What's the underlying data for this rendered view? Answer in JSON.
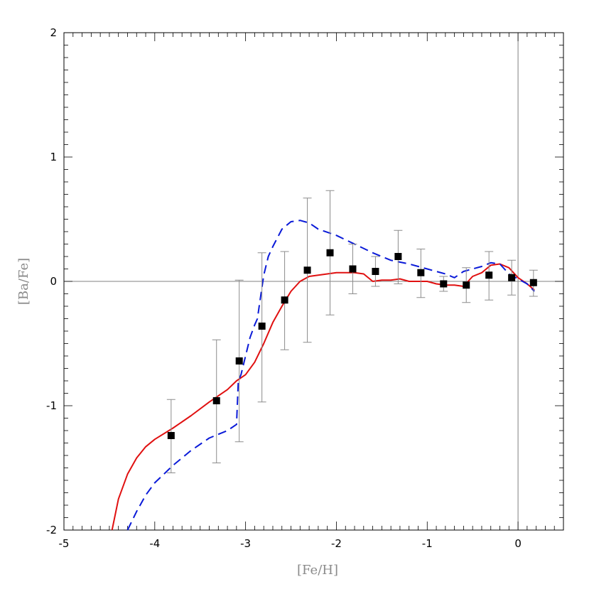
{
  "chart_data": {
    "type": "scatter",
    "xlabel": "[Fe/H]",
    "ylabel": "[Ba/Fe]",
    "xlim": [
      -5,
      0.5
    ],
    "ylim": [
      -2,
      2
    ],
    "x_ticks": [
      "-5",
      "-4",
      "-3",
      "-2",
      "-1",
      "0"
    ],
    "y_ticks": [
      "-2",
      "-1",
      "0",
      "1",
      "2"
    ],
    "reference_lines": {
      "x": 0,
      "y": 0
    },
    "colors": {
      "observations": "#000000",
      "error_bars": "#8c8c8c",
      "solid_model": "#e01010",
      "dashed_model": "#0a1ad8",
      "reference_lines": "#808080"
    },
    "observations": {
      "x": [
        -3.82,
        -3.32,
        -3.07,
        -2.82,
        -2.57,
        -2.32,
        -2.07,
        -1.82,
        -1.57,
        -1.32,
        -1.07,
        -0.82,
        -0.57,
        -0.32,
        -0.07,
        0.17
      ],
      "y": [
        -1.24,
        -0.96,
        -0.64,
        -0.36,
        -0.15,
        0.09,
        0.23,
        0.1,
        0.08,
        0.2,
        0.07,
        -0.02,
        -0.03,
        0.05,
        0.03,
        -0.01
      ],
      "err_low": [
        0.3,
        0.5,
        0.65,
        0.61,
        0.4,
        0.58,
        0.5,
        0.2,
        0.12,
        0.22,
        0.2,
        0.06,
        0.14,
        0.2,
        0.14,
        0.11
      ],
      "err_high": [
        0.29,
        0.49,
        0.65,
        0.59,
        0.39,
        0.58,
        0.5,
        0.2,
        0.12,
        0.21,
        0.19,
        0.06,
        0.14,
        0.19,
        0.14,
        0.1
      ]
    },
    "series": [
      {
        "style": "solid",
        "x": [
          -4.47,
          -4.4,
          -4.3,
          -4.2,
          -4.1,
          -4.0,
          -3.8,
          -3.6,
          -3.4,
          -3.2,
          -3.1,
          -3.0,
          -2.9,
          -2.8,
          -2.7,
          -2.6,
          -2.5,
          -2.4,
          -2.3,
          -2.2,
          -2.1,
          -2.0,
          -1.9,
          -1.8,
          -1.7,
          -1.6,
          -1.5,
          -1.4,
          -1.3,
          -1.2,
          -1.1,
          -1.0,
          -0.9,
          -0.8,
          -0.7,
          -0.6,
          -0.5,
          -0.4,
          -0.3,
          -0.2,
          -0.1,
          0.0,
          0.1,
          0.18
        ],
        "y": [
          -2.0,
          -1.75,
          -1.55,
          -1.42,
          -1.33,
          -1.27,
          -1.18,
          -1.08,
          -0.97,
          -0.87,
          -0.8,
          -0.75,
          -0.65,
          -0.5,
          -0.33,
          -0.2,
          -0.08,
          0.0,
          0.04,
          0.05,
          0.06,
          0.07,
          0.07,
          0.07,
          0.06,
          0.0,
          0.01,
          0.01,
          0.02,
          0.0,
          0.0,
          0.0,
          -0.02,
          -0.03,
          -0.03,
          -0.04,
          0.04,
          0.07,
          0.13,
          0.14,
          0.11,
          0.03,
          -0.02,
          -0.07
        ]
      },
      {
        "style": "dashed",
        "x": [
          -4.3,
          -4.2,
          -4.1,
          -4.0,
          -3.9,
          -3.8,
          -3.6,
          -3.4,
          -3.2,
          -3.1,
          -3.08,
          -3.05,
          -3.0,
          -2.95,
          -2.9,
          -2.87,
          -2.85,
          -2.8,
          -2.75,
          -2.7,
          -2.6,
          -2.5,
          -2.4,
          -2.3,
          -2.2,
          -2.0,
          -1.8,
          -1.6,
          -1.4,
          -1.2,
          -1.0,
          -0.8,
          -0.7,
          -0.6,
          -0.5,
          -0.4,
          -0.3,
          -0.2,
          -0.1,
          0.0,
          0.1,
          0.18
        ],
        "y": [
          -2.0,
          -1.85,
          -1.72,
          -1.62,
          -1.55,
          -1.48,
          -1.36,
          -1.26,
          -1.2,
          -1.15,
          -0.8,
          -0.75,
          -0.6,
          -0.45,
          -0.35,
          -0.3,
          -0.2,
          0.05,
          0.2,
          0.28,
          0.42,
          0.48,
          0.49,
          0.47,
          0.42,
          0.37,
          0.3,
          0.23,
          0.17,
          0.14,
          0.1,
          0.06,
          0.03,
          0.08,
          0.1,
          0.12,
          0.15,
          0.14,
          0.06,
          0.02,
          -0.02,
          -0.08
        ]
      }
    ]
  }
}
